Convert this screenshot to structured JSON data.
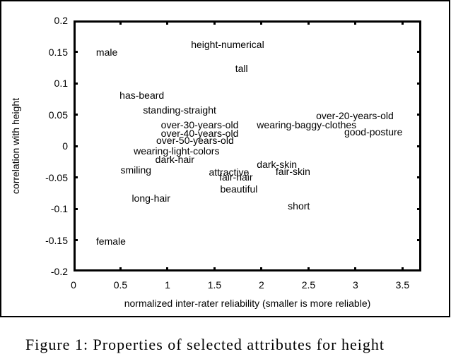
{
  "chart_data": {
    "type": "scatter",
    "title": "",
    "xlabel": "normalized inter-rater reliability (smaller is more reliable)",
    "ylabel": "correlation with height",
    "xlim": [
      0,
      3.7
    ],
    "ylim": [
      -0.2,
      0.2
    ],
    "grid": false,
    "x_ticks": [
      "0",
      "0.5",
      "1",
      "1.5",
      "2",
      "2.5",
      "3",
      "3.5"
    ],
    "x_tick_values": [
      0,
      0.5,
      1,
      1.5,
      2,
      2.5,
      3,
      3.5
    ],
    "y_ticks": [
      "0.2",
      "0.15",
      "0.1",
      "0.05",
      "0",
      "-0.05",
      "-0.1",
      "-0.15",
      "-0.2"
    ],
    "y_tick_values": [
      0.2,
      0.15,
      0.1,
      0.05,
      0,
      -0.05,
      -0.1,
      -0.15,
      -0.2
    ],
    "points": [
      {
        "label": "male",
        "x": 0.24,
        "y": 0.15
      },
      {
        "label": "height-numerical",
        "x": 1.25,
        "y": 0.162
      },
      {
        "label": "tall",
        "x": 1.72,
        "y": 0.124
      },
      {
        "label": "has-beard",
        "x": 0.49,
        "y": 0.081
      },
      {
        "label": "standing-straight",
        "x": 0.74,
        "y": 0.057
      },
      {
        "label": "over-30-years-old",
        "x": 0.93,
        "y": 0.034
      },
      {
        "label": "over-40-years-old",
        "x": 0.93,
        "y": 0.02
      },
      {
        "label": "over-50-years-old",
        "x": 0.88,
        "y": 0.009
      },
      {
        "label": "wearing-light-colors",
        "x": 0.64,
        "y": -0.008
      },
      {
        "label": "dark-hair",
        "x": 0.87,
        "y": -0.021
      },
      {
        "label": "smiling",
        "x": 0.5,
        "y": -0.038
      },
      {
        "label": "wearing-baggy-clothes",
        "x": 1.95,
        "y": 0.034
      },
      {
        "label": "over-20-years-old",
        "x": 2.58,
        "y": 0.048
      },
      {
        "label": "good-posture",
        "x": 2.88,
        "y": 0.022
      },
      {
        "label": "dark-skin",
        "x": 1.95,
        "y": -0.029
      },
      {
        "label": "fair-skin",
        "x": 2.15,
        "y": -0.04
      },
      {
        "label": "attractive",
        "x": 1.44,
        "y": -0.042
      },
      {
        "label": "fair-hair",
        "x": 1.55,
        "y": -0.049
      },
      {
        "label": "beautiful",
        "x": 1.56,
        "y": -0.069
      },
      {
        "label": "long-hair",
        "x": 0.62,
        "y": -0.083
      },
      {
        "label": "short",
        "x": 2.28,
        "y": -0.096
      },
      {
        "label": "female",
        "x": 0.24,
        "y": -0.152
      }
    ]
  },
  "caption": "Figure 1: Properties of selected attributes for height"
}
